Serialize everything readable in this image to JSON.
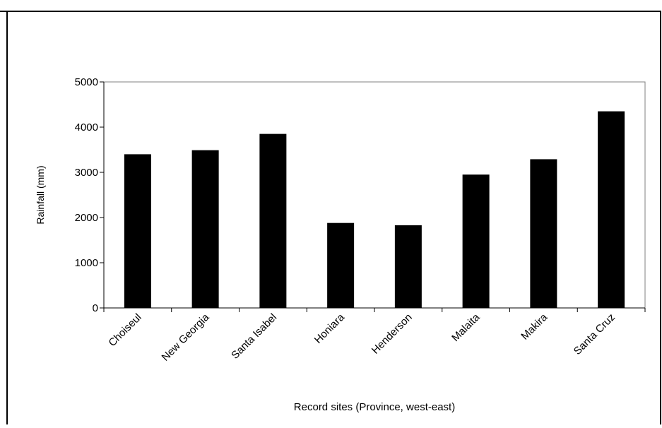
{
  "chart_data": {
    "type": "bar",
    "title": "",
    "xlabel": "Record sites (Province, west-east)",
    "ylabel": "Rainfall (mm)",
    "categories": [
      "Choiseul",
      "New Georgia",
      "Santa Isabel",
      "Honiara",
      "Henderson",
      "Malaita",
      "Makira",
      "Santa Cruz"
    ],
    "values": [
      3400,
      3490,
      3850,
      1880,
      1830,
      2950,
      3290,
      4350
    ],
    "ylim": [
      0,
      5000
    ],
    "yticks": [
      0,
      1000,
      2000,
      3000,
      4000,
      5000
    ],
    "grid": false,
    "legend": "none",
    "bar_color": "#000000",
    "axis_color": "#000000",
    "plot_border_color": "#808080"
  }
}
